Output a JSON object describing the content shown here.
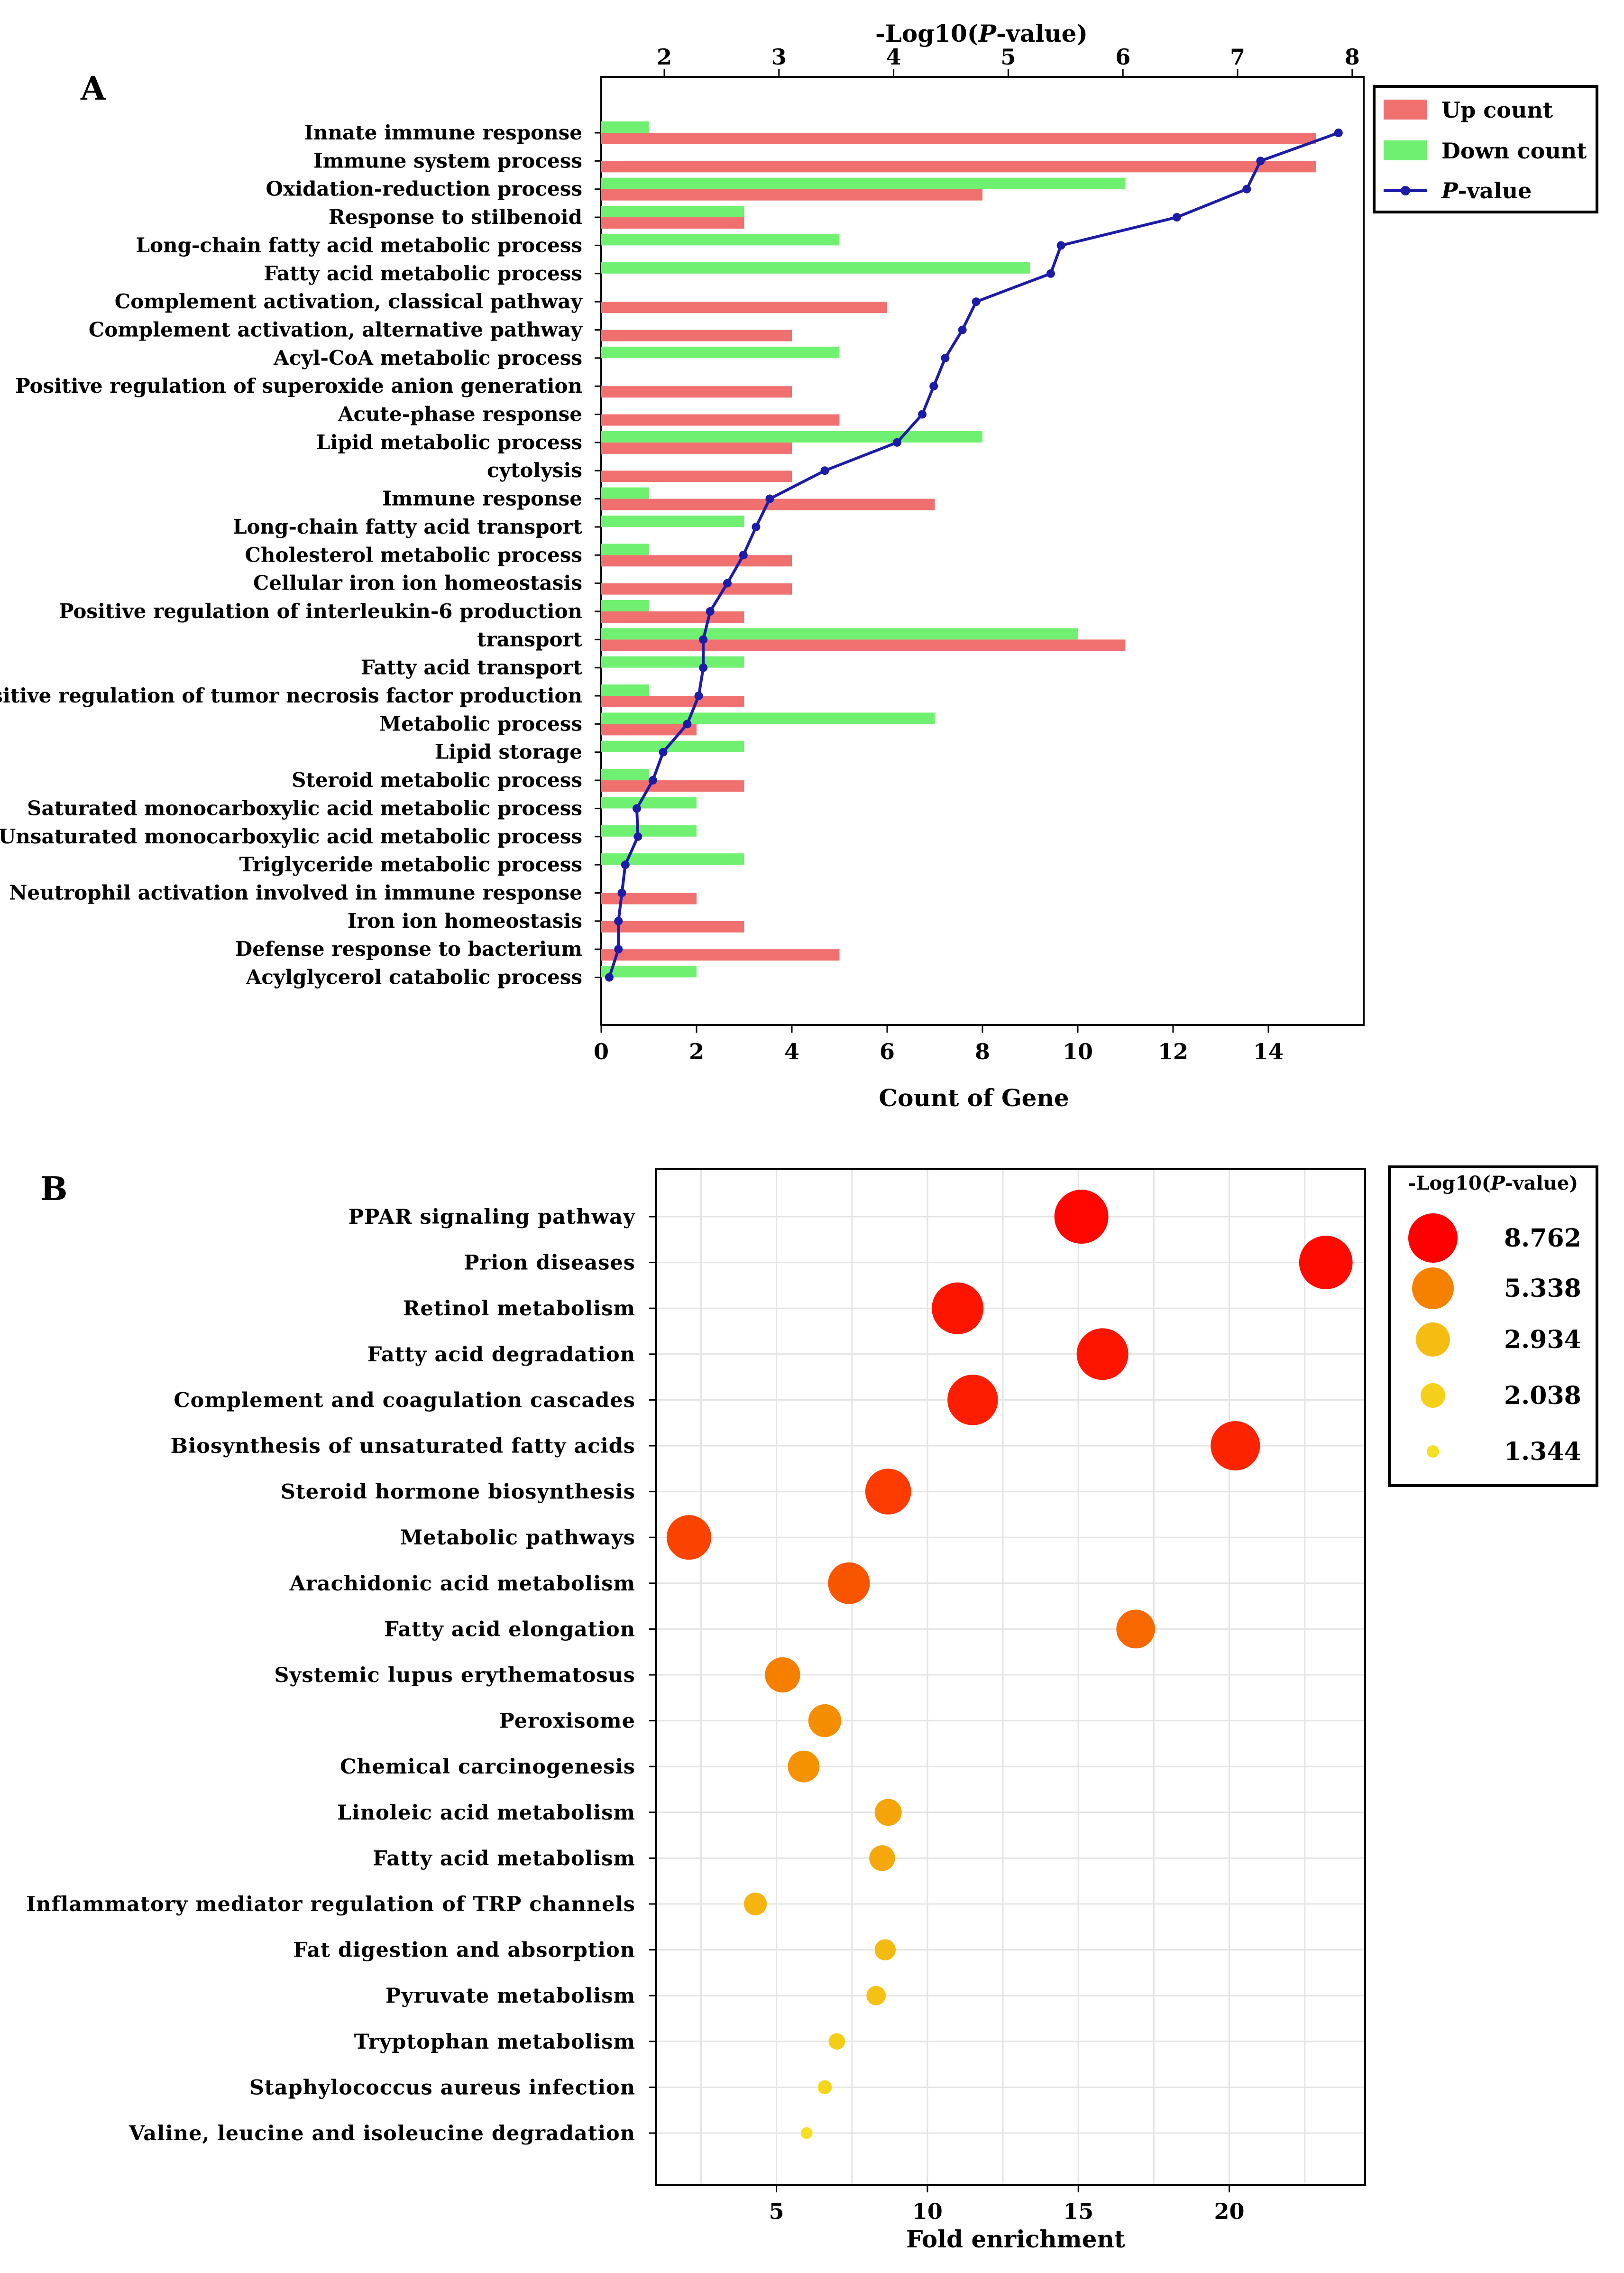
{
  "chart_data": [
    {
      "panel": "A",
      "type": "bar",
      "title": "",
      "xlabel": "Count of Gene",
      "x2label_parts": [
        "-Log10(",
        "P",
        "-value)"
      ],
      "xlim": [
        0,
        16
      ],
      "x_ticks": [
        0,
        2,
        4,
        6,
        8,
        10,
        12,
        14
      ],
      "x2lim": [
        1.45,
        8.1
      ],
      "x2_ticks": [
        2,
        3,
        4,
        5,
        6,
        7,
        8
      ],
      "categories": [
        "Innate immune response",
        "Immune system process",
        "Oxidation-reduction process",
        "Response to stilbenoid",
        "Long-chain fatty acid metabolic process",
        "Fatty acid metabolic process",
        "Complement activation, classical pathway",
        "Complement activation, alternative pathway",
        "Acyl-CoA metabolic process",
        "Positive regulation of superoxide anion generation",
        "Acute-phase response",
        "Lipid metabolic process",
        "cytolysis",
        "Immune response",
        "Long-chain fatty acid transport",
        "Cholesterol metabolic process",
        "Cellular iron ion homeostasis",
        "Positive regulation of interleukin-6 production",
        "transport",
        "Fatty acid transport",
        "Positive regulation of tumor necrosis factor production",
        "Metabolic process",
        "Lipid storage",
        "Steroid metabolic process",
        "Saturated monocarboxylic acid metabolic process",
        "Unsaturated monocarboxylic acid metabolic process",
        "Triglyceride metabolic process",
        "Neutrophil activation involved in immune response",
        "Iron ion homeostasis",
        "Defense response to bacterium",
        "Acylglycerol catabolic process"
      ],
      "series": [
        {
          "name": "Up count",
          "color": "#f07070",
          "values": [
            15,
            15,
            8,
            3,
            0,
            0,
            6,
            4,
            0,
            4,
            5,
            4,
            4,
            7,
            0,
            4,
            4,
            3,
            11,
            0,
            3,
            2,
            0,
            3,
            0,
            0,
            0,
            2,
            3,
            5,
            0
          ]
        },
        {
          "name": "Down count",
          "color": "#70f070",
          "values": [
            1,
            0,
            11,
            3,
            5,
            9,
            0,
            0,
            5,
            0,
            0,
            8,
            0,
            1,
            3,
            1,
            0,
            1,
            10,
            3,
            1,
            7,
            3,
            1,
            2,
            2,
            3,
            0,
            0,
            0,
            2
          ]
        },
        {
          "name": "P-value",
          "color": "#1c1ca8",
          "values": [
            7.88,
            7.2,
            7.08,
            6.47,
            5.46,
            5.37,
            4.72,
            4.6,
            4.45,
            4.35,
            4.25,
            4.03,
            3.4,
            2.92,
            2.8,
            2.69,
            2.55,
            2.4,
            2.34,
            2.34,
            2.3,
            2.2,
            1.99,
            1.9,
            1.76,
            1.77,
            1.66,
            1.63,
            1.6,
            1.6,
            1.52
          ]
        }
      ],
      "legend": [
        {
          "label": "Up count",
          "italic": ""
        },
        {
          "label": "Down count",
          "italic": ""
        },
        {
          "label": "-value",
          "italic": "P"
        }
      ],
      "legend_position": "top-right"
    },
    {
      "panel": "B",
      "type": "scatter",
      "xlabel": "Fold enrichment",
      "xlim": [
        1,
        24.5
      ],
      "x_ticks": [
        5,
        10,
        15,
        20
      ],
      "grid": true,
      "size_title_parts": [
        "-Log10(",
        "P",
        "-value)"
      ],
      "size_legend": [
        8.762,
        5.338,
        2.934,
        2.038,
        1.344
      ],
      "size_legend_labels": [
        "8.762",
        "5.338",
        "2.934",
        "2.038",
        "1.344"
      ],
      "color_low": "#f5e020",
      "color_high": "#ff0000",
      "legend_position": "right",
      "categories": [
        "PPAR signaling pathway",
        "Prion diseases",
        "Retinol metabolism",
        "Fatty acid degradation",
        "Complement and coagulation cascades",
        "Biosynthesis of unsaturated fatty acids",
        "Steroid hormone biosynthesis",
        "Metabolic pathways",
        "Arachidonic acid metabolism",
        "Fatty acid elongation",
        "Systemic lupus erythematosus",
        "Peroxisome",
        "Chemical carcinogenesis",
        "Linoleic acid metabolism",
        "Fatty acid metabolism",
        "Inflammatory mediator regulation of TRP channels",
        "Fat digestion and absorption",
        "Pyruvate metabolism",
        "Tryptophan metabolism",
        "Staphylococcus aureus infection",
        "Valine, leucine and isoleucine degradation"
      ],
      "fold_enrichment": [
        15.1,
        23.2,
        11.0,
        15.8,
        11.5,
        20.2,
        8.7,
        2.1,
        7.4,
        16.9,
        5.2,
        6.6,
        5.9,
        8.7,
        8.5,
        4.3,
        8.6,
        8.3,
        7.0,
        6.6,
        6.0
      ],
      "log10p": [
        8.6,
        8.5,
        8.2,
        8.2,
        8.0,
        7.8,
        7.2,
        7.0,
        6.5,
        6.0,
        5.4,
        5.0,
        4.8,
        4.0,
        3.8,
        3.3,
        3.0,
        2.7,
        2.2,
        1.8,
        1.4
      ]
    }
  ]
}
